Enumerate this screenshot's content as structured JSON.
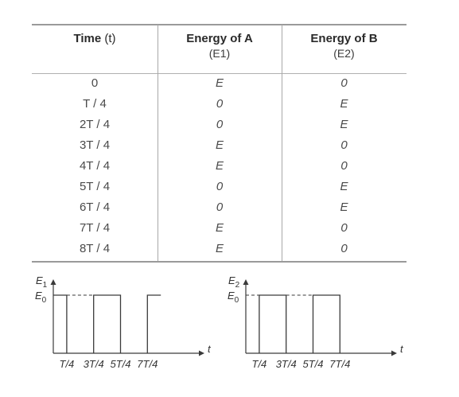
{
  "table": {
    "headers": [
      {
        "main": "Time",
        "sym": "(t)",
        "sub": ""
      },
      {
        "main": "Energy of A",
        "sym": "",
        "sub": "(E1)"
      },
      {
        "main": "Energy of B",
        "sym": "",
        "sub": "(E2)"
      }
    ],
    "rows": [
      [
        "0",
        "E",
        "0"
      ],
      [
        "T / 4",
        "0",
        "E"
      ],
      [
        "2T / 4",
        "0",
        "E"
      ],
      [
        "3T / 4",
        "E",
        "0"
      ],
      [
        "4T / 4",
        "E",
        "0"
      ],
      [
        "5T / 4",
        "0",
        "E"
      ],
      [
        "6T / 4",
        "0",
        "E"
      ],
      [
        "7T / 4",
        "E",
        "0"
      ],
      [
        "8T / 4",
        "E",
        "0"
      ]
    ]
  },
  "graphs": [
    {
      "y_label": "E1",
      "level_label": "E0",
      "x_label": "t",
      "x_ticks": [
        "T/4",
        "3T/4",
        "5T/4",
        "7T/4"
      ],
      "high_intervals": [
        [
          0,
          1
        ],
        [
          3,
          5
        ],
        [
          7,
          8
        ]
      ],
      "dashed_intervals": [
        [
          1,
          3
        ]
      ]
    },
    {
      "y_label": "E2",
      "level_label": "E0",
      "x_label": "t",
      "x_ticks": [
        "T/4",
        "3T/4",
        "5T/4",
        "7T/4"
      ],
      "high_intervals": [
        [
          1,
          3
        ],
        [
          5,
          7
        ]
      ],
      "dashed_intervals": [
        [
          0,
          1
        ],
        [
          3,
          5
        ]
      ]
    }
  ]
}
